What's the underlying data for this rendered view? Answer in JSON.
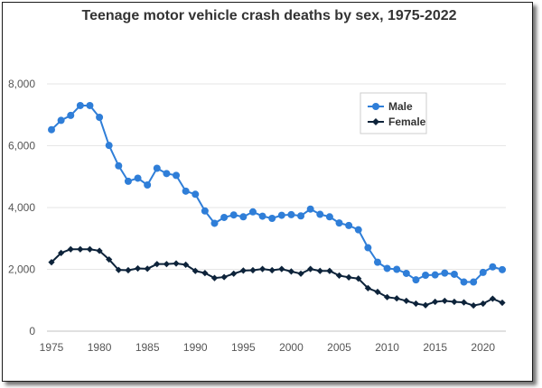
{
  "chart_data": {
    "type": "line",
    "title": "Teenage motor vehicle crash deaths by sex, 1975-2022",
    "xlabel": "",
    "ylabel": "",
    "x": [
      1975,
      1976,
      1977,
      1978,
      1979,
      1980,
      1981,
      1982,
      1983,
      1984,
      1985,
      1986,
      1987,
      1988,
      1989,
      1990,
      1991,
      1992,
      1993,
      1994,
      1995,
      1996,
      1997,
      1998,
      1999,
      2000,
      2001,
      2002,
      2003,
      2004,
      2005,
      2006,
      2007,
      2008,
      2009,
      2010,
      2011,
      2012,
      2013,
      2014,
      2015,
      2016,
      2017,
      2018,
      2019,
      2020,
      2021,
      2022
    ],
    "xlim": [
      1975,
      2022
    ],
    "ylim": [
      0,
      8000
    ],
    "x_ticks": [
      "1975",
      "1980",
      "1985",
      "1990",
      "1995",
      "2000",
      "2005",
      "2010",
      "2015",
      "2020"
    ],
    "x_tick_values": [
      1975,
      1980,
      1985,
      1990,
      1995,
      2000,
      2005,
      2010,
      2015,
      2020
    ],
    "y_ticks": [
      "0",
      "2,000",
      "4,000",
      "6,000",
      "8,000"
    ],
    "y_tick_values": [
      0,
      2000,
      4000,
      6000,
      8000
    ],
    "grid": true,
    "legend_position": "top-right",
    "series": [
      {
        "name": "Male",
        "color": "#2f7ed8",
        "marker": "circle",
        "values": [
          6520,
          6820,
          6980,
          7300,
          7300,
          6920,
          6010,
          5350,
          4850,
          4950,
          4730,
          5270,
          5100,
          5040,
          4530,
          4430,
          3890,
          3490,
          3680,
          3760,
          3700,
          3860,
          3720,
          3650,
          3750,
          3770,
          3730,
          3950,
          3780,
          3700,
          3500,
          3420,
          3280,
          2700,
          2230,
          2030,
          2000,
          1870,
          1660,
          1810,
          1820,
          1880,
          1840,
          1590,
          1590,
          1900,
          2080,
          1990
        ]
      },
      {
        "name": "Female",
        "color": "#0d233a",
        "marker": "diamond",
        "values": [
          2230,
          2530,
          2650,
          2650,
          2650,
          2600,
          2320,
          1980,
          1970,
          2030,
          2020,
          2170,
          2170,
          2190,
          2150,
          1950,
          1880,
          1720,
          1750,
          1860,
          1960,
          1970,
          2010,
          1970,
          2010,
          1930,
          1860,
          2010,
          1950,
          1950,
          1800,
          1740,
          1700,
          1390,
          1270,
          1100,
          1060,
          980,
          890,
          840,
          950,
          980,
          950,
          930,
          830,
          890,
          1050,
          920
        ]
      }
    ]
  }
}
